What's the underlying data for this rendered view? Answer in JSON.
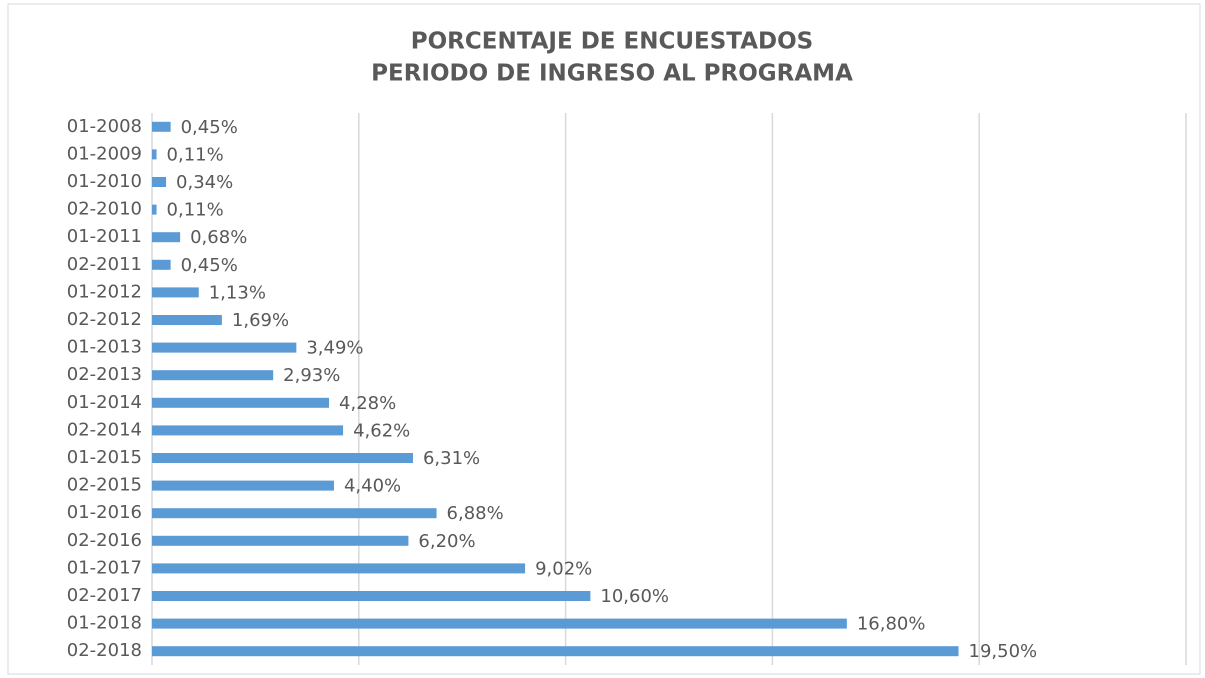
{
  "chart_data": {
    "type": "bar",
    "orientation": "horizontal",
    "title": [
      "PORCENTAJE DE ENCUESTADOS",
      "PERIODO DE INGRESO AL PROGRAMA"
    ],
    "categories": [
      "01-2008",
      "01-2009",
      "01-2010",
      "02-2010",
      "01-2011",
      "02-2011",
      "01-2012",
      "02-2012",
      "01-2013",
      "02-2013",
      "01-2014",
      "02-2014",
      "01-2015",
      "02-2015",
      "01-2016",
      "02-2016",
      "01-2017",
      "02-2017",
      "01-2018",
      "02-2018"
    ],
    "values": [
      0.45,
      0.11,
      0.34,
      0.11,
      0.68,
      0.45,
      1.13,
      1.69,
      3.49,
      2.93,
      4.28,
      4.62,
      6.31,
      4.4,
      6.88,
      6.2,
      9.02,
      10.6,
      16.8,
      19.5
    ],
    "value_labels": [
      "0,45%",
      "0,11%",
      "0,34%",
      "0,11%",
      "0,68%",
      "0,45%",
      "1,13%",
      "1,69%",
      "3,49%",
      "2,93%",
      "4,28%",
      "4,62%",
      "6,31%",
      "4,40%",
      "6,88%",
      "6,20%",
      "9,02%",
      "10,60%",
      "16,80%",
      "19,50%"
    ],
    "color": "#5b9bd5",
    "xlim": [
      0,
      25
    ],
    "xticks": [
      0,
      5,
      10,
      15,
      20,
      25
    ],
    "grid": true
  }
}
